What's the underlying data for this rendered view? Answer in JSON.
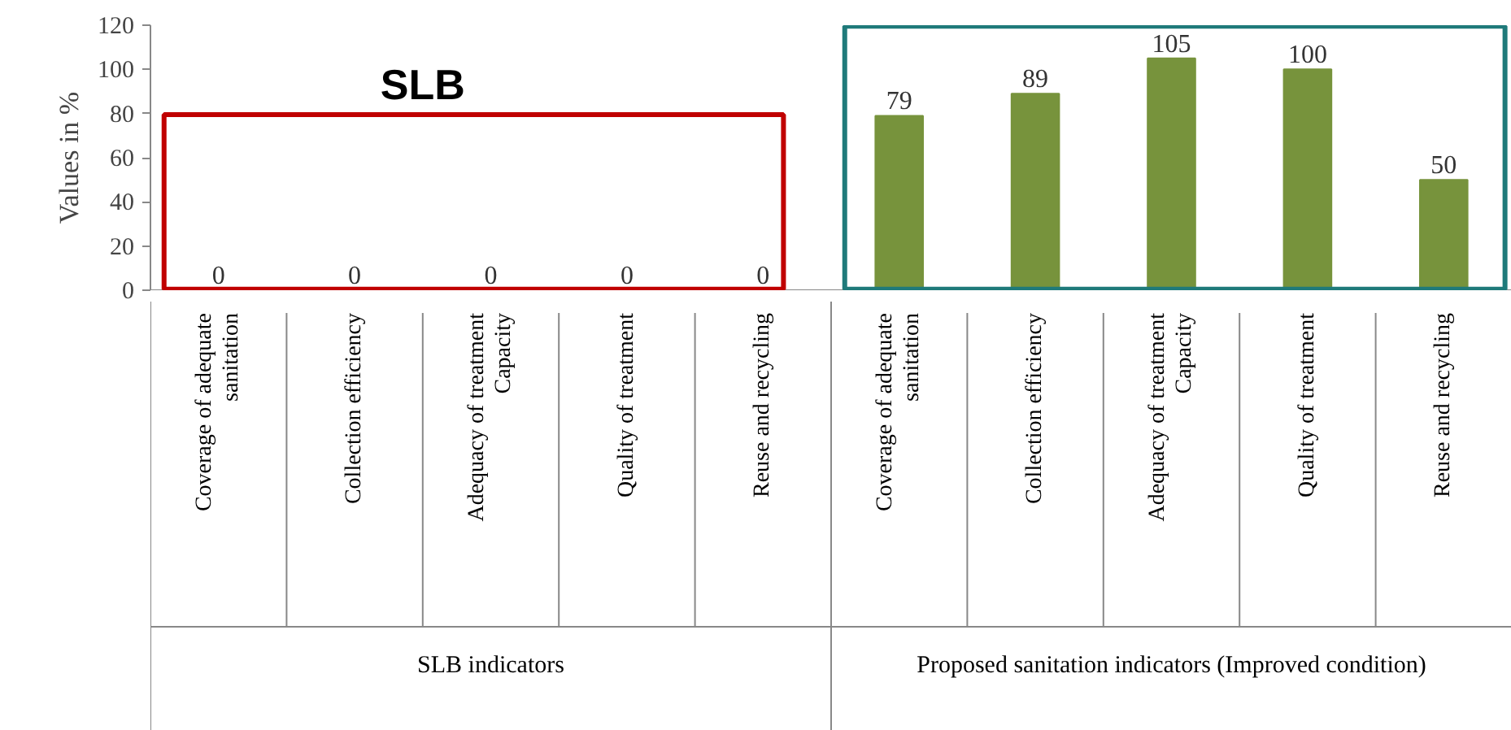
{
  "chart_data": {
    "type": "bar",
    "ylabel": "Values in %",
    "categories": [
      "Coverage of adequate\nsanitation",
      "Collection efficiency",
      "Adequacy of treatment\nCapacity",
      "Quality of treatment",
      "Reuse and recycling",
      "Coverage of adequate\nsanitation",
      "Collection efficiency",
      "Adequacy of treatment\nCapacity",
      "Quality of treatment",
      "Reuse and recycling"
    ],
    "values": [
      0,
      0,
      0,
      0,
      0,
      79,
      89,
      105,
      100,
      50
    ],
    "color": "#77933c",
    "ylim": [
      0,
      120
    ],
    "yticks": [
      0,
      20,
      40,
      60,
      80,
      100,
      120
    ],
    "grid": false,
    "data_labels": true,
    "annotations": [
      "SLB",
      "SLB indicators",
      "Proposed sanitation indicators (Improved condition)"
    ]
  }
}
